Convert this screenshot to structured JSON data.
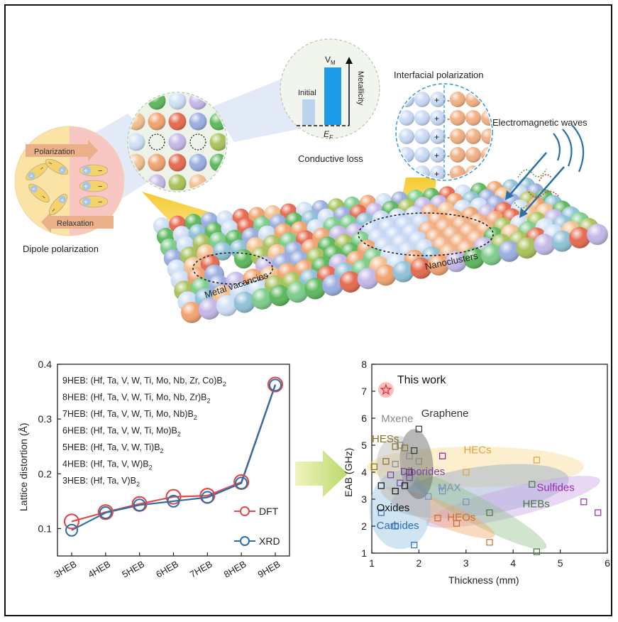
{
  "illustration": {
    "dipole_polarization": {
      "title": "Dipole polarization",
      "polarization_label": "Polarization",
      "relaxation_label": "Relaxation"
    },
    "conductive_loss": {
      "title": "Conductive loss",
      "initial_label": "Initial",
      "vm_label": "V",
      "vm_sub": "M",
      "metallicity_label": "Metallicity",
      "ef_label": "E",
      "ef_sub": "F"
    },
    "interfacial_polarization": {
      "title": "Interfacial polarization"
    },
    "em_waves": {
      "title": "Electromagnetic waves"
    },
    "metal_vacancies_label": "Metal vacancies",
    "nanoclusters_label": "Nanoclusters",
    "colors": {
      "orange": "#f0a36f",
      "green": "#5cb85c",
      "blue": "#9aaee0",
      "purple": "#c4b8e8",
      "lightblue": "#cfe0f6",
      "red": "#e66a4f",
      "teal": "#4aa89a"
    }
  },
  "chart_data": [
    {
      "type": "line",
      "categories": [
        "3HEB",
        "4HEB",
        "5HEB",
        "6HEB",
        "7HEB",
        "8HEB",
        "9HEB"
      ],
      "series": [
        {
          "name": "DFT",
          "values": [
            0.113,
            0.13,
            0.145,
            0.158,
            0.16,
            0.185,
            0.363
          ],
          "color": "#e04a4a"
        },
        {
          "name": "XRD",
          "values": [
            0.097,
            0.129,
            0.143,
            0.15,
            0.157,
            0.183,
            0.362
          ],
          "color": "#2a6fa8"
        }
      ],
      "ylabel": "Lattice distortion (Å)",
      "ylim": [
        0.05,
        0.4
      ],
      "yticks": [
        "0.1",
        "0.2",
        "0.3",
        "0.4"
      ],
      "annotations": [
        {
          "prefix": "9HEB: (Hf, Ta, V, W, Ti, Mo, Nb, Zr, Co)B",
          "sub": "2"
        },
        {
          "prefix": "8HEB: (Hf, Ta, V, W, Ti, Mo, Nb, Zr)B",
          "sub": "2"
        },
        {
          "prefix": "7HEB: (Hf, Ta, V, W, Ti, Mo, Nb)B",
          "sub": "2"
        },
        {
          "prefix": "6HEB: (Hf, Ta, V, W, Ti, Mo)B",
          "sub": "2"
        },
        {
          "prefix": "5HEB: (Hf, Ta, V, W, Ti)B",
          "sub": "2"
        },
        {
          "prefix": "4HEB: (Hf, Ta, V, W)B",
          "sub": "2"
        },
        {
          "prefix": "3HEB: (Hf, Ta, V)B",
          "sub": "2"
        }
      ],
      "legend": "bottom-right"
    },
    {
      "type": "scatter",
      "xlabel": "Thickness (mm)",
      "ylabel": "EAB (GHz)",
      "xlim": [
        1,
        6
      ],
      "ylim": [
        1,
        8
      ],
      "xticks": [
        "1",
        "2",
        "3",
        "4",
        "5",
        "6"
      ],
      "yticks": [
        "1",
        "2",
        "3",
        "4",
        "5",
        "6",
        "7",
        "8"
      ],
      "this_work": {
        "label": "This work",
        "x": 1.3,
        "y": 7.05,
        "color": "#e53935"
      },
      "groups": [
        {
          "name": "Mxene",
          "color": "#888888",
          "label_x": 1.2,
          "label_y": 5.85,
          "points": [
            [
              1.6,
              5.0
            ],
            [
              1.8,
              4.6
            ],
            [
              2.0,
              4.4
            ],
            [
              1.5,
              4.3
            ]
          ]
        },
        {
          "name": "Graphene",
          "color": "#333333",
          "label_x": 2.05,
          "label_y": 6.05,
          "points": [
            [
              2.0,
              5.6
            ],
            [
              1.9,
              4.8
            ],
            [
              1.8,
              4.0
            ]
          ]
        },
        {
          "name": "HESs",
          "color": "#8a6d1e",
          "label_x": 1.0,
          "label_y": 5.1,
          "points": [
            [
              1.05,
              4.2
            ],
            [
              1.5,
              4.95
            ],
            [
              1.7,
              4.9
            ],
            [
              1.3,
              4.4
            ]
          ]
        },
        {
          "name": "HECs",
          "color": "#e6a23c",
          "label_x": 2.95,
          "label_y": 4.7,
          "points": [
            [
              4.5,
              4.45
            ],
            [
              2.5,
              4.6
            ],
            [
              3.0,
              4.0
            ]
          ]
        },
        {
          "name": "Diborides",
          "color": "#7b3fa3",
          "label_x": 1.6,
          "label_y": 3.9,
          "points": [
            [
              1.4,
              3.9
            ],
            [
              1.6,
              3.6
            ],
            [
              1.8,
              3.8
            ]
          ]
        },
        {
          "name": "MAX",
          "color": "#7b8fb8",
          "label_x": 2.4,
          "label_y": 3.3,
          "points": [
            [
              3.0,
              2.9
            ],
            [
              2.5,
              3.3
            ],
            [
              2.2,
              3.1
            ]
          ]
        },
        {
          "name": "Sulfides",
          "color": "#9c27b0",
          "label_x": 4.5,
          "label_y": 3.3,
          "points": [
            [
              5.5,
              2.9
            ],
            [
              5.8,
              2.5
            ],
            [
              2.5,
              4.6
            ]
          ]
        },
        {
          "name": "HEBs",
          "color": "#3c7a3c",
          "label_x": 4.2,
          "label_y": 2.7,
          "points": [
            [
              4.4,
              3.55
            ],
            [
              4.5,
              1.05
            ],
            [
              3.5,
              2.5
            ]
          ]
        },
        {
          "name": "Oxides",
          "color": "#111111",
          "label_x": 1.1,
          "label_y": 2.55,
          "points": [
            [
              1.2,
              3.5
            ],
            [
              1.5,
              3.3
            ],
            [
              1.7,
              3.5
            ]
          ]
        },
        {
          "name": "HEOs",
          "color": "#d2691e",
          "label_x": 2.6,
          "label_y": 2.2,
          "points": [
            [
              3.5,
              1.4
            ],
            [
              2.8,
              2.1
            ],
            [
              2.4,
              2.3
            ]
          ]
        },
        {
          "name": "Carbides",
          "color": "#2e6fb0",
          "label_x": 1.1,
          "label_y": 1.9,
          "points": [
            [
              1.9,
              1.3
            ],
            [
              1.2,
              2.5
            ],
            [
              1.5,
              2.0
            ]
          ]
        }
      ]
    }
  ]
}
